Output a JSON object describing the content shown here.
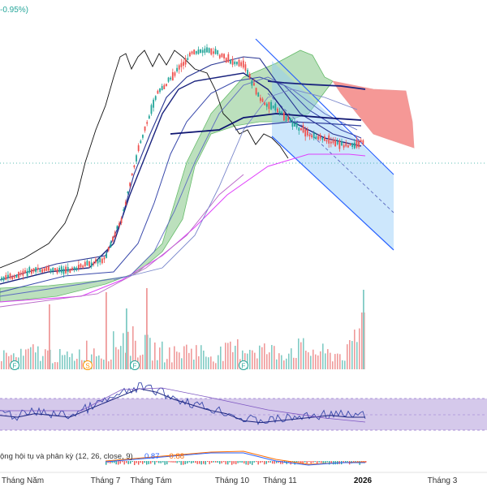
{
  "header": {
    "change_text": "-0.95%)",
    "change_color": "#26a69a"
  },
  "macd": {
    "label": "ộng hội tụ và phân kỳ (12, 26, close, 9)",
    "value1": "0.87",
    "value2": "−0.88",
    "value1_color": "#2962ff",
    "value2_color": "#ff6d00"
  },
  "x_axis": {
    "ticks": [
      {
        "label": "Tháng Năm",
        "bold": false
      },
      {
        "label": "Tháng 7",
        "bold": false
      },
      {
        "label": "Tháng Tám",
        "bold": false
      },
      {
        "label": "Tháng 10",
        "bold": false
      },
      {
        "label": "Tháng 11",
        "bold": false
      },
      {
        "label": "2026",
        "bold": true
      },
      {
        "label": "Tháng 3",
        "bold": false
      }
    ]
  },
  "event_markers": [
    {
      "letter": "F",
      "color": "#26a69a"
    },
    {
      "letter": "S",
      "color": "#ff9800"
    },
    {
      "letter": "F",
      "color": "#26a69a"
    },
    {
      "letter": "F",
      "color": "#26a69a"
    }
  ],
  "colors": {
    "up": "#26a69a",
    "down": "#ef5350",
    "cloud_bull": "#a5d6a7",
    "cloud_bear": "#ef5350",
    "channel": "#2962ff",
    "rsi_band": "#b39ddb"
  },
  "chart_data": {
    "type": "candlestick",
    "x_ticks": [
      "Tháng Năm",
      "Tháng 7",
      "Tháng Tám",
      "Tháng 10",
      "Tháng 11",
      "2026",
      "Tháng 3"
    ],
    "price_path": [
      10,
      11,
      12,
      12,
      12,
      13,
      14,
      22,
      36,
      46,
      50,
      54,
      55,
      53,
      52,
      45,
      43,
      40,
      38,
      37,
      36,
      37
    ],
    "volume_path": [
      18,
      15,
      22,
      17,
      14,
      25,
      20,
      40,
      30,
      23,
      19,
      26,
      17,
      21,
      28,
      24,
      20,
      26,
      22,
      18,
      20,
      60
    ],
    "macd_path": [
      1,
      0,
      2,
      1,
      0,
      4,
      8,
      12,
      16,
      14,
      10,
      7,
      4,
      2,
      -2,
      -3,
      -2,
      -1,
      0,
      1,
      0,
      0
    ]
  }
}
